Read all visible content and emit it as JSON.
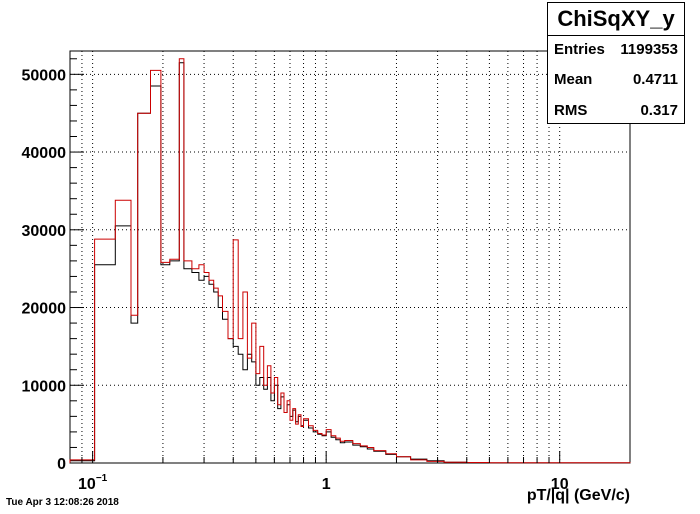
{
  "chart_data": {
    "type": "histogram",
    "x_scale": "log",
    "xlim": [
      0.08,
      20
    ],
    "ylim": [
      0,
      53000
    ],
    "xlabel": "pT/|q| (GeV/c)",
    "ylabel": "",
    "grid": true,
    "x_tick_labels": [
      {
        "value": 0.1,
        "base": "10",
        "exp": "−1"
      },
      {
        "value": 1,
        "base": "1",
        "exp": ""
      },
      {
        "value": 10,
        "base": "10",
        "exp": ""
      }
    ],
    "y_ticks": [
      0,
      10000,
      20000,
      30000,
      40000,
      50000
    ],
    "series": [
      {
        "color": "#000000",
        "edges": [
          0.08,
          0.102,
          0.125,
          0.146,
          0.156,
          0.177,
          0.196,
          0.214,
          0.235,
          0.246,
          0.266,
          0.285,
          0.3,
          0.315,
          0.33,
          0.345,
          0.36,
          0.38,
          0.4,
          0.42,
          0.44,
          0.46,
          0.48,
          0.5,
          0.52,
          0.54,
          0.56,
          0.58,
          0.6,
          0.62,
          0.64,
          0.66,
          0.68,
          0.7,
          0.72,
          0.74,
          0.76,
          0.78,
          0.8,
          0.84,
          0.88,
          0.92,
          0.96,
          1.0,
          1.05,
          1.1,
          1.15,
          1.2,
          1.3,
          1.4,
          1.5,
          1.6,
          1.8,
          2.0,
          2.3,
          2.7,
          3.2,
          4.0,
          5.0,
          20.0
        ],
        "values": [
          300,
          25500,
          30500,
          18000,
          45000,
          48500,
          25500,
          26000,
          51500,
          25000,
          24500,
          23500,
          24000,
          23000,
          22000,
          20000,
          18500,
          16000,
          15000,
          14000,
          12000,
          14000,
          13000,
          10000,
          11000,
          9500,
          11000,
          8000,
          10000,
          7000,
          8500,
          6500,
          7500,
          6000,
          6800,
          5300,
          6000,
          4800,
          5500,
          4500,
          4000,
          3700,
          3500,
          4000,
          3300,
          3000,
          2600,
          2700,
          2300,
          2100,
          1800,
          1500,
          1100,
          800,
          500,
          300,
          100,
          50,
          10
        ]
      },
      {
        "color": "#cc0000",
        "edges": [
          0.08,
          0.102,
          0.125,
          0.146,
          0.156,
          0.177,
          0.196,
          0.214,
          0.235,
          0.246,
          0.266,
          0.285,
          0.3,
          0.315,
          0.33,
          0.345,
          0.36,
          0.38,
          0.4,
          0.42,
          0.44,
          0.46,
          0.48,
          0.5,
          0.52,
          0.54,
          0.56,
          0.58,
          0.6,
          0.62,
          0.64,
          0.66,
          0.68,
          0.7,
          0.72,
          0.74,
          0.76,
          0.78,
          0.8,
          0.84,
          0.88,
          0.92,
          0.96,
          1.0,
          1.05,
          1.1,
          1.15,
          1.2,
          1.3,
          1.4,
          1.5,
          1.6,
          1.8,
          2.0,
          2.3,
          2.7,
          3.2,
          4.0,
          5.0,
          20.0
        ],
        "values": [
          400,
          28800,
          33800,
          19000,
          45000,
          50500,
          25800,
          26200,
          52000,
          26000,
          25000,
          25500,
          24500,
          23500,
          22500,
          21500,
          19500,
          16000,
          28700,
          16000,
          22000,
          13500,
          18000,
          11500,
          15000,
          10000,
          12500,
          9000,
          11000,
          7500,
          9000,
          6500,
          8000,
          5500,
          7000,
          5000,
          6200,
          4700,
          5700,
          4800,
          4200,
          3800,
          3600,
          4300,
          3500,
          3200,
          2800,
          2900,
          2500,
          2200,
          2000,
          1600,
          1200,
          800,
          400,
          200,
          100,
          60,
          20
        ]
      }
    ]
  },
  "stats": {
    "title": "ChiSqXY_y",
    "rows": [
      {
        "label": "Entries",
        "value": "1199353"
      },
      {
        "label": "Mean",
        "value": "0.4711"
      },
      {
        "label": "RMS",
        "value": "0.317"
      }
    ]
  },
  "timestamp": "Tue Apr  3 12:08:26 2018"
}
